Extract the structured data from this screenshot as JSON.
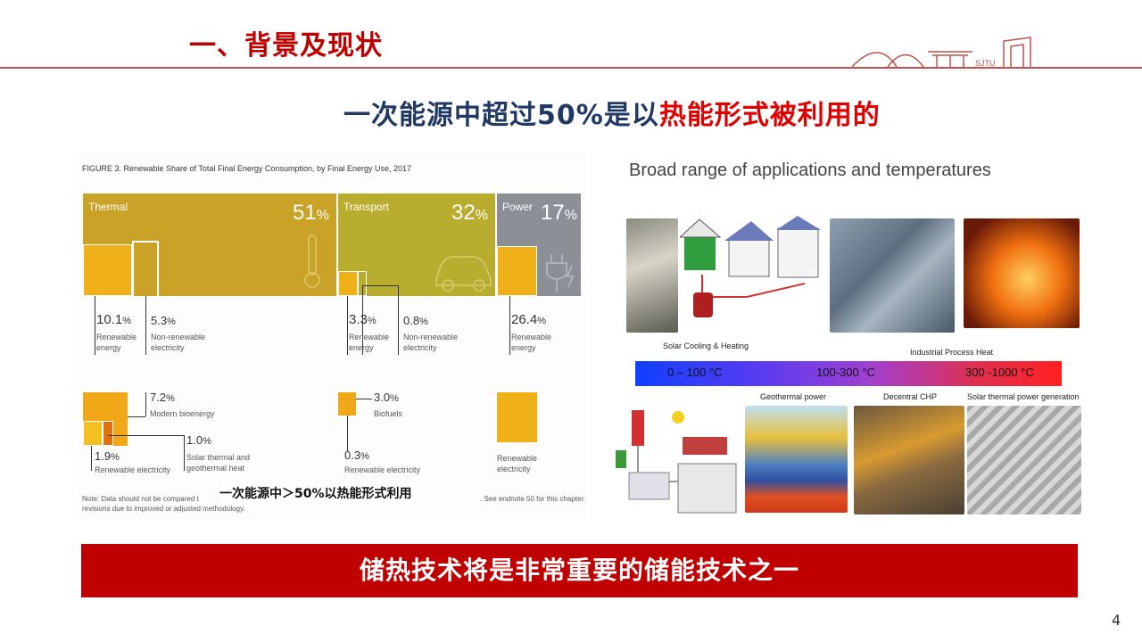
{
  "header": {
    "title": "一、背景及现状",
    "subtitle_part1": "一次能源中超过50%是以",
    "subtitle_part2": "热能形式被利用的"
  },
  "figure": {
    "caption": "FIGURE 3.  Renewable Share of Total Final Energy Consumption, by Final Energy Use, 2017",
    "thermal": {
      "label": "Thermal",
      "pct": "51",
      "unit": "%"
    },
    "transport": {
      "label": "Transport",
      "pct": "32",
      "unit": "%"
    },
    "power": {
      "label": "Power",
      "pct": "17",
      "unit": "%"
    },
    "thermal_renewable": {
      "value": "10.1",
      "unit": "%",
      "desc1": "Renewable",
      "desc2": "energy"
    },
    "thermal_nonrenewable": {
      "value": "5.3",
      "unit": "%",
      "desc1": "Non-renewable",
      "desc2": "electricity"
    },
    "transport_renewable": {
      "value": "3.3",
      "unit": "%",
      "desc1": "Renewable",
      "desc2": "energy"
    },
    "transport_nonrenewable": {
      "value": "0.8",
      "unit": "%",
      "desc1": "Non-renewable",
      "desc2": "electricity"
    },
    "power_renewable": {
      "value": "26.4",
      "unit": "%",
      "desc1": "Renewable",
      "desc2": "energy"
    },
    "modern_bioenergy": {
      "value": "7.2",
      "unit": "%",
      "desc": "Modern bioenergy"
    },
    "solar_thermal": {
      "value": "1.0",
      "unit": "%",
      "desc1": "Solar thermal and",
      "desc2": "geothermal heat"
    },
    "thermal_renew_elec": {
      "value": "1.9",
      "unit": "%",
      "desc": "Renewable electricity"
    },
    "biofuels": {
      "value": "3.0",
      "unit": "%",
      "desc": "Biofuels"
    },
    "transport_renew_elec": {
      "value": "0.3",
      "unit": "%",
      "desc": "Renewable electricity"
    },
    "power_renew_elec": {
      "desc1": "Renewable",
      "desc2": "electricity"
    },
    "note_left": "Note: Data should not be compared t",
    "note_left2": "revisions due to improved or adjusted methodology.",
    "note_right": ". See endnote 50 for this chapter.",
    "overlay_note": "一次能源中＞50%以热能形式利用",
    "colors": {
      "thermal": "#c9a227",
      "transport": "#b8ad2e",
      "power": "#8c8f96",
      "orange": "#f0a818",
      "dark_orange": "#e08a10"
    }
  },
  "applications": {
    "title": "Broad range of applications and temperatures",
    "captions": {
      "solar_cooling": "Solar Cooling & Heating",
      "industrial_heat": "Industrial Process Heat",
      "geothermal": "Geothermal power",
      "decentral_chp": "Decentral CHP",
      "solar_thermal_power": "Solar thermal power generation"
    },
    "temps": {
      "low": "0 – 100 °C",
      "mid": "100-300 °C",
      "high": "300 -1000 °C"
    }
  },
  "banner": "储热技术将是非常重要的储能技术之一",
  "page_number": "4"
}
